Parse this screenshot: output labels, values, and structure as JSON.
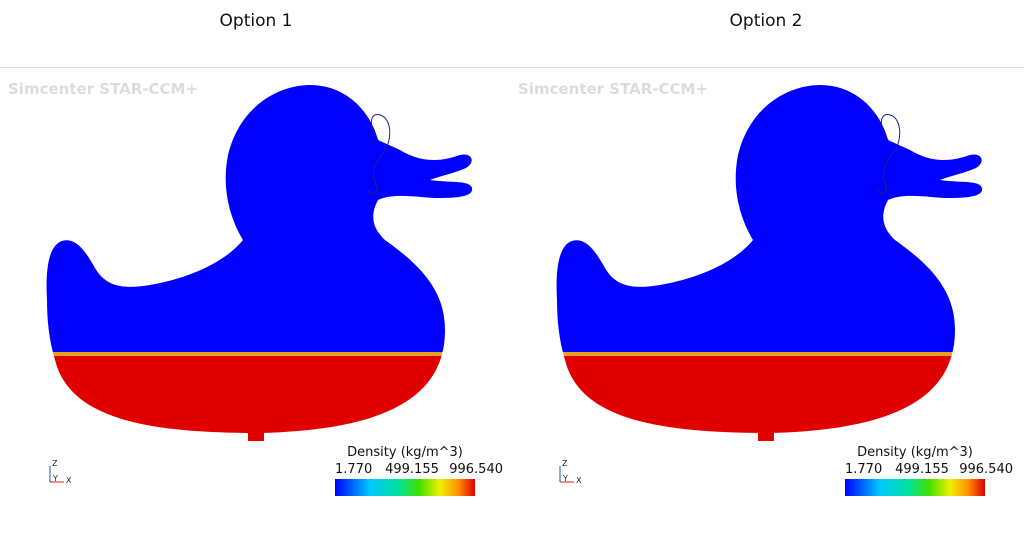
{
  "panels": [
    {
      "title": "Option 1",
      "watermark": "Simcenter STAR-CCM+",
      "legend": {
        "title": "Density (kg/m^3)",
        "labels": [
          "1.770",
          "499.155",
          "996.540"
        ]
      },
      "triad": {
        "z": "Z",
        "y": "Y",
        "x": "X"
      }
    },
    {
      "title": "Option 2",
      "watermark": "Simcenter STAR-CCM+",
      "legend": {
        "title": "Density (kg/m^3)",
        "labels": [
          "1.770",
          "499.155",
          "996.540"
        ]
      },
      "triad": {
        "z": "Z",
        "y": "Y",
        "x": "X"
      }
    }
  ]
}
